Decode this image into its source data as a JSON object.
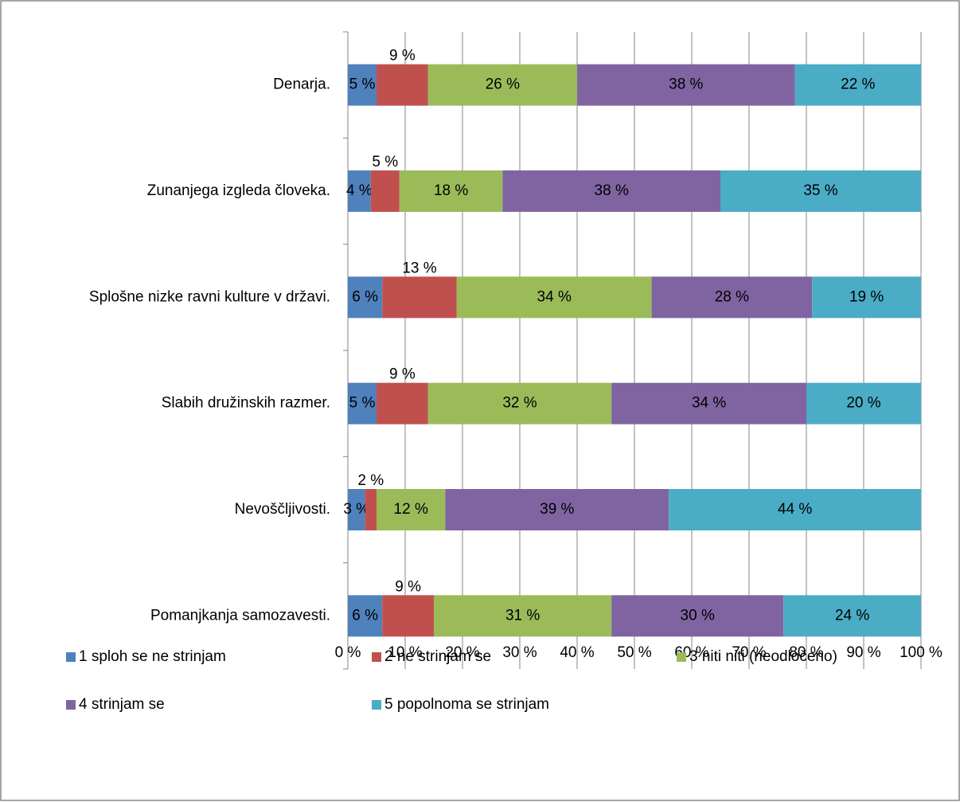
{
  "chart_data": {
    "type": "bar",
    "orientation": "horizontal",
    "stacked": true,
    "categories": [
      "Denarja.",
      "Zunanjega izgleda človeka.",
      "Splošne nizke ravni kulture v državi.",
      "Slabih družinskih razmer.",
      "Nevoščljivosti.",
      "Pomanjkanja samozavesti."
    ],
    "series": [
      {
        "name": "1 sploh se ne strinjam",
        "color": "#4f81bd",
        "values": [
          5,
          4,
          6,
          5,
          3,
          6
        ],
        "value_labels": [
          "5 %",
          "4 %",
          "6 %",
          "5 %",
          "3 %",
          "6 %"
        ]
      },
      {
        "name": "2 ne strinjam se",
        "color": "#c0504d",
        "values": [
          9,
          5,
          13,
          9,
          2,
          9
        ],
        "value_labels": [
          "9 %",
          "5 %",
          "13 %",
          "9 %",
          "2 %",
          "9 %"
        ]
      },
      {
        "name": "3 niti niti (neodločeno)",
        "color": "#9bbb59",
        "values": [
          26,
          18,
          34,
          32,
          12,
          31
        ],
        "value_labels": [
          "26 %",
          "18 %",
          "34 %",
          "32 %",
          "12 %",
          "31 %"
        ]
      },
      {
        "name": "4 strinjam se",
        "color": "#8064a2",
        "values": [
          38,
          38,
          28,
          34,
          39,
          30
        ],
        "value_labels": [
          "38 %",
          "38 %",
          "28 %",
          "34 %",
          "39 %",
          "30 %"
        ]
      },
      {
        "name": "5 popolnoma se strinjam",
        "color": "#4bacc6",
        "values": [
          22,
          35,
          19,
          20,
          44,
          24
        ],
        "value_labels": [
          "22 %",
          "35 %",
          "19 %",
          "20 %",
          "44 %",
          "24 %"
        ]
      }
    ],
    "xlim": [
      0,
      100
    ],
    "xticks": [
      {
        "value": 0,
        "label": "0 %"
      },
      {
        "value": 10,
        "label": "10 %"
      },
      {
        "value": 20,
        "label": "20 %"
      },
      {
        "value": 30,
        "label": "30 %"
      },
      {
        "value": 40,
        "label": "40 %"
      },
      {
        "value": 50,
        "label": "50 %"
      },
      {
        "value": 60,
        "label": "60 %"
      },
      {
        "value": 70,
        "label": "70 %"
      },
      {
        "value": 80,
        "label": "80 %"
      },
      {
        "value": 90,
        "label": "90 %"
      },
      {
        "value": 100,
        "label": "100 %"
      }
    ],
    "grid": true,
    "legend": "bottom"
  }
}
